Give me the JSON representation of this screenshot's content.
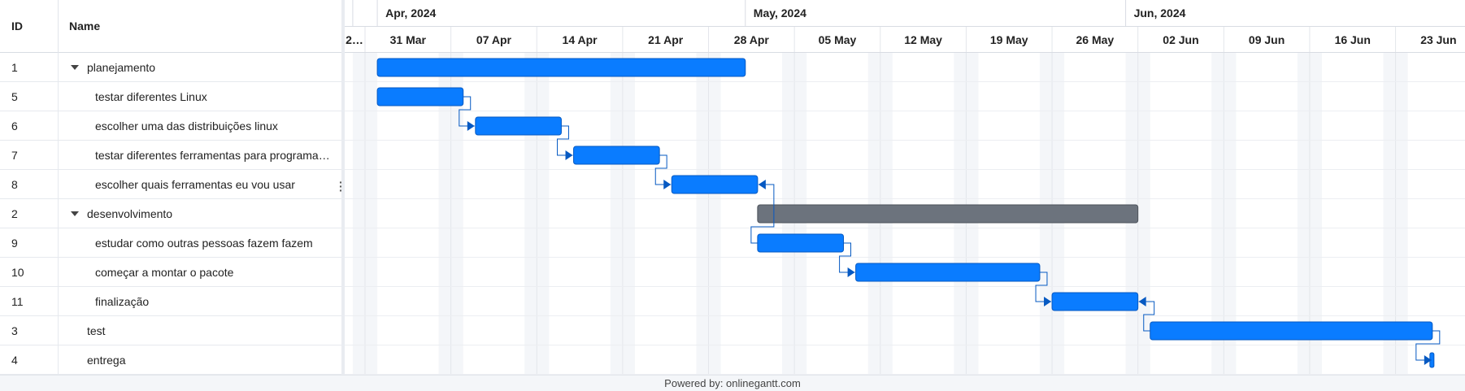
{
  "grid": {
    "headers": {
      "id": "ID",
      "name": "Name"
    },
    "rows": [
      {
        "id": "1",
        "name": "planejamento",
        "level": 0,
        "parent": true
      },
      {
        "id": "5",
        "name": "testar diferentes Linux",
        "level": 1,
        "parent": false
      },
      {
        "id": "6",
        "name": "escolher uma das distribuições linux",
        "level": 1,
        "parent": false
      },
      {
        "id": "7",
        "name": "testar diferentes ferramentas para programação",
        "level": 1,
        "parent": false
      },
      {
        "id": "8",
        "name": "escolher quais ferramentas eu vou usar",
        "level": 1,
        "parent": false
      },
      {
        "id": "2",
        "name": "desenvolvimento",
        "level": 0,
        "parent": true
      },
      {
        "id": "9",
        "name": "estudar como outras pessoas fazem fazem",
        "level": 1,
        "parent": false
      },
      {
        "id": "10",
        "name": "começar a montar o pacote",
        "level": 1,
        "parent": false
      },
      {
        "id": "11",
        "name": "finalização",
        "level": 1,
        "parent": false
      },
      {
        "id": "3",
        "name": "test",
        "level": 0,
        "parent": false
      },
      {
        "id": "4",
        "name": "entrega",
        "level": 0,
        "parent": false
      }
    ]
  },
  "timeline": {
    "months": [
      "Apr, 2024",
      "May, 2024",
      "Jun, 2024"
    ],
    "weeks": [
      "2…",
      "31 Mar",
      "07 Apr",
      "14 Apr",
      "21 Apr",
      "28 Apr",
      "05 May",
      "12 May",
      "19 May",
      "26 May",
      "02 Jun",
      "09 Jun",
      "16 Jun",
      "23 Jun"
    ]
  },
  "tasks": [
    {
      "row": 0,
      "start": "2024-04-01",
      "end": "2024-05-01",
      "type": "parent"
    },
    {
      "row": 1,
      "start": "2024-04-01",
      "end": "2024-04-08"
    },
    {
      "row": 2,
      "start": "2024-04-09",
      "end": "2024-04-16"
    },
    {
      "row": 3,
      "start": "2024-04-17",
      "end": "2024-04-24"
    },
    {
      "row": 4,
      "start": "2024-04-25",
      "end": "2024-05-02"
    },
    {
      "row": 5,
      "start": "2024-05-02",
      "end": "2024-06-02",
      "type": "grey"
    },
    {
      "row": 6,
      "start": "2024-05-02",
      "end": "2024-05-09"
    },
    {
      "row": 7,
      "start": "2024-05-10",
      "end": "2024-05-25"
    },
    {
      "row": 8,
      "start": "2024-05-26",
      "end": "2024-06-02"
    },
    {
      "row": 9,
      "start": "2024-06-03",
      "end": "2024-06-26"
    },
    {
      "row": 10,
      "start": "2024-06-26",
      "end": "2024-06-26",
      "type": "milestone"
    }
  ],
  "links": [
    {
      "from": 1,
      "to": 2
    },
    {
      "from": 2,
      "to": 3
    },
    {
      "from": 3,
      "to": 4
    },
    {
      "from": 4,
      "to": 6,
      "reverse": true
    },
    {
      "from": 6,
      "to": 7
    },
    {
      "from": 7,
      "to": 8
    },
    {
      "from": 8,
      "to": 9,
      "reverse": true
    },
    {
      "from": 9,
      "to": 10
    }
  ],
  "colors": {
    "bar": "#0a7cff",
    "barBorder": "#0659c2",
    "grey": "#6c737d",
    "link": "#0659c2",
    "weekend": "#f4f6f9"
  },
  "footer": {
    "text": "Powered by: onlinegantt.com"
  }
}
